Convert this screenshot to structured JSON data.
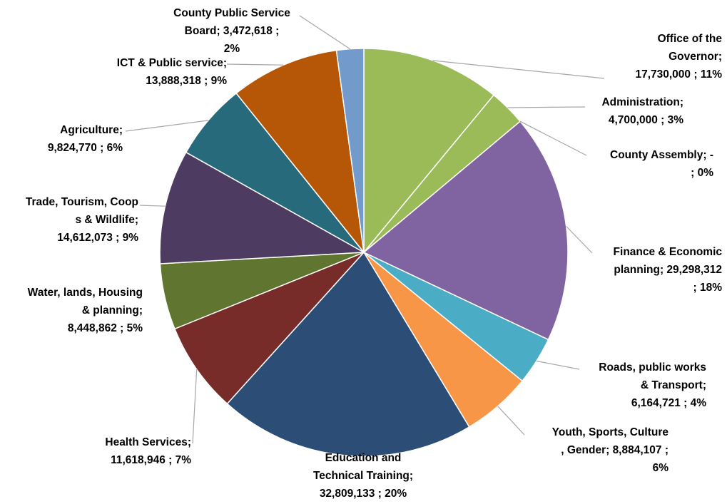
{
  "chart_data": {
    "type": "pie",
    "title": "",
    "slices": [
      {
        "name": "Office of the Governor",
        "value": 17730000,
        "percent": "11%",
        "color": "#9bbb59",
        "label_color": "#4f81bd",
        "label": "Office of the\nGovernor;\n17,730,000 ; 11%"
      },
      {
        "name": "Administration",
        "value": 4700000,
        "percent": "3%",
        "color": "#9bbb59",
        "label_color": "#c0504d",
        "label": "Administration;\n4,700,000 ; 3%"
      },
      {
        "name": "County Assembly",
        "value": 0,
        "percent": "0%",
        "color": "#9bbb59",
        "label_color": "#9bbb59",
        "label": "County Assembly;  -\n; 0%"
      },
      {
        "name": "Finance & Economic planning",
        "value": 29298312,
        "percent": "18%",
        "color": "#8064a2",
        "label_color": "#8064a2",
        "label": "Finance & Economic\nplanning;  29,298,312\n; 18%"
      },
      {
        "name": "Roads, public works & Transport",
        "value": 6164721,
        "percent": "4%",
        "color": "#4bacc6",
        "label_color": "#4bacc6",
        "label": "Roads, public works\n& Transport;\n6,164,721 ; 4%"
      },
      {
        "name": "Youth, Sports, Culture , Gender",
        "value": 8884107,
        "percent": "6%",
        "color": "#f79646",
        "label_color": "#f79646",
        "label": "Youth, Sports, Culture\n, Gender;  8,884,107 ;\n6%"
      },
      {
        "name": "Education and Technical Training",
        "value": 32809133,
        "percent": "20%",
        "color": "#2c4d75",
        "label_color": "#2c4d75",
        "label": "Education and\nTechnical Training;\n32,809,133 ; 20%"
      },
      {
        "name": "Health Services",
        "value": 11618946,
        "percent": "7%",
        "color": "#772c2a",
        "label_color": "#772c2a",
        "label": "Health Services;\n11,618,946 ; 7%"
      },
      {
        "name": "Water, lands, Housing & planning",
        "value": 8448862,
        "percent": "5%",
        "color": "#5f7530",
        "label_color": "#5f7530",
        "label": "Water, lands,  Housing\n& planning;\n8,448,862 ; 5%"
      },
      {
        "name": "Trade, Tourism, Coops & Wildlife",
        "value": 14612073,
        "percent": "9%",
        "color": "#4d3b62",
        "label_color": "#4d3b62",
        "label": "Trade, Tourism, Coop\ns & Wildlife;\n14,612,073 ; 9%"
      },
      {
        "name": "Agriculture",
        "value": 9824770,
        "percent": "6%",
        "color": "#276a7c",
        "label_color": "#276a7c",
        "label": "Agriculture;\n9,824,770 ; 6%"
      },
      {
        "name": "ICT & Public service",
        "value": 13888318,
        "percent": "9%",
        "color": "#b65708",
        "label_color": "#b65708",
        "label": "ICT & Public service;\n13,888,318 ; 9%"
      },
      {
        "name": "County Public Service Board",
        "value": 3472618,
        "percent": "2%",
        "color": "#729aca",
        "label_color": "#729aca",
        "label": "County Public Service\nBoard;  3,472,618 ;\n2%"
      }
    ]
  }
}
